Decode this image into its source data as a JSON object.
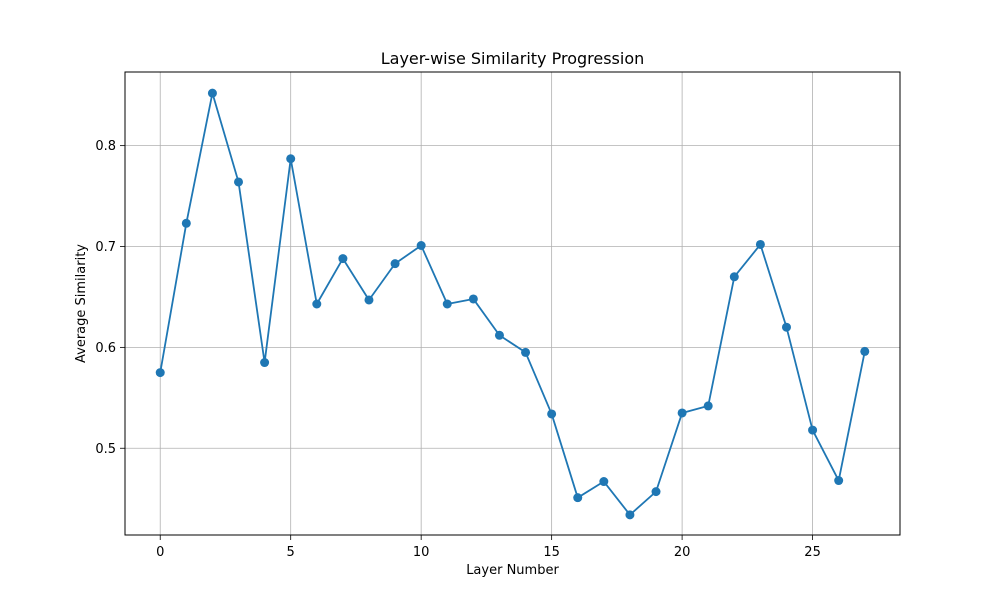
{
  "chart_data": {
    "type": "line",
    "title": "Layer-wise Similarity Progression",
    "xlabel": "Layer Number",
    "ylabel": "Average Similarity",
    "xlim": [
      -1.35,
      28.35
    ],
    "ylim": [
      0.414,
      0.873
    ],
    "x_ticks": [
      0,
      5,
      10,
      15,
      20,
      25
    ],
    "y_ticks": [
      0.5,
      0.6,
      0.7,
      0.8
    ],
    "grid": true,
    "series": [
      {
        "color": "#1f77b4",
        "marker": "circle",
        "x": [
          0,
          1,
          2,
          3,
          4,
          5,
          6,
          7,
          8,
          9,
          10,
          11,
          12,
          13,
          14,
          15,
          16,
          17,
          18,
          19,
          20,
          21,
          22,
          23,
          24,
          25,
          26,
          27
        ],
        "values": [
          0.575,
          0.723,
          0.852,
          0.764,
          0.585,
          0.787,
          0.643,
          0.688,
          0.647,
          0.683,
          0.701,
          0.643,
          0.648,
          0.612,
          0.595,
          0.534,
          0.451,
          0.467,
          0.434,
          0.457,
          0.535,
          0.542,
          0.67,
          0.702,
          0.62,
          0.518,
          0.468,
          0.596
        ]
      }
    ]
  }
}
